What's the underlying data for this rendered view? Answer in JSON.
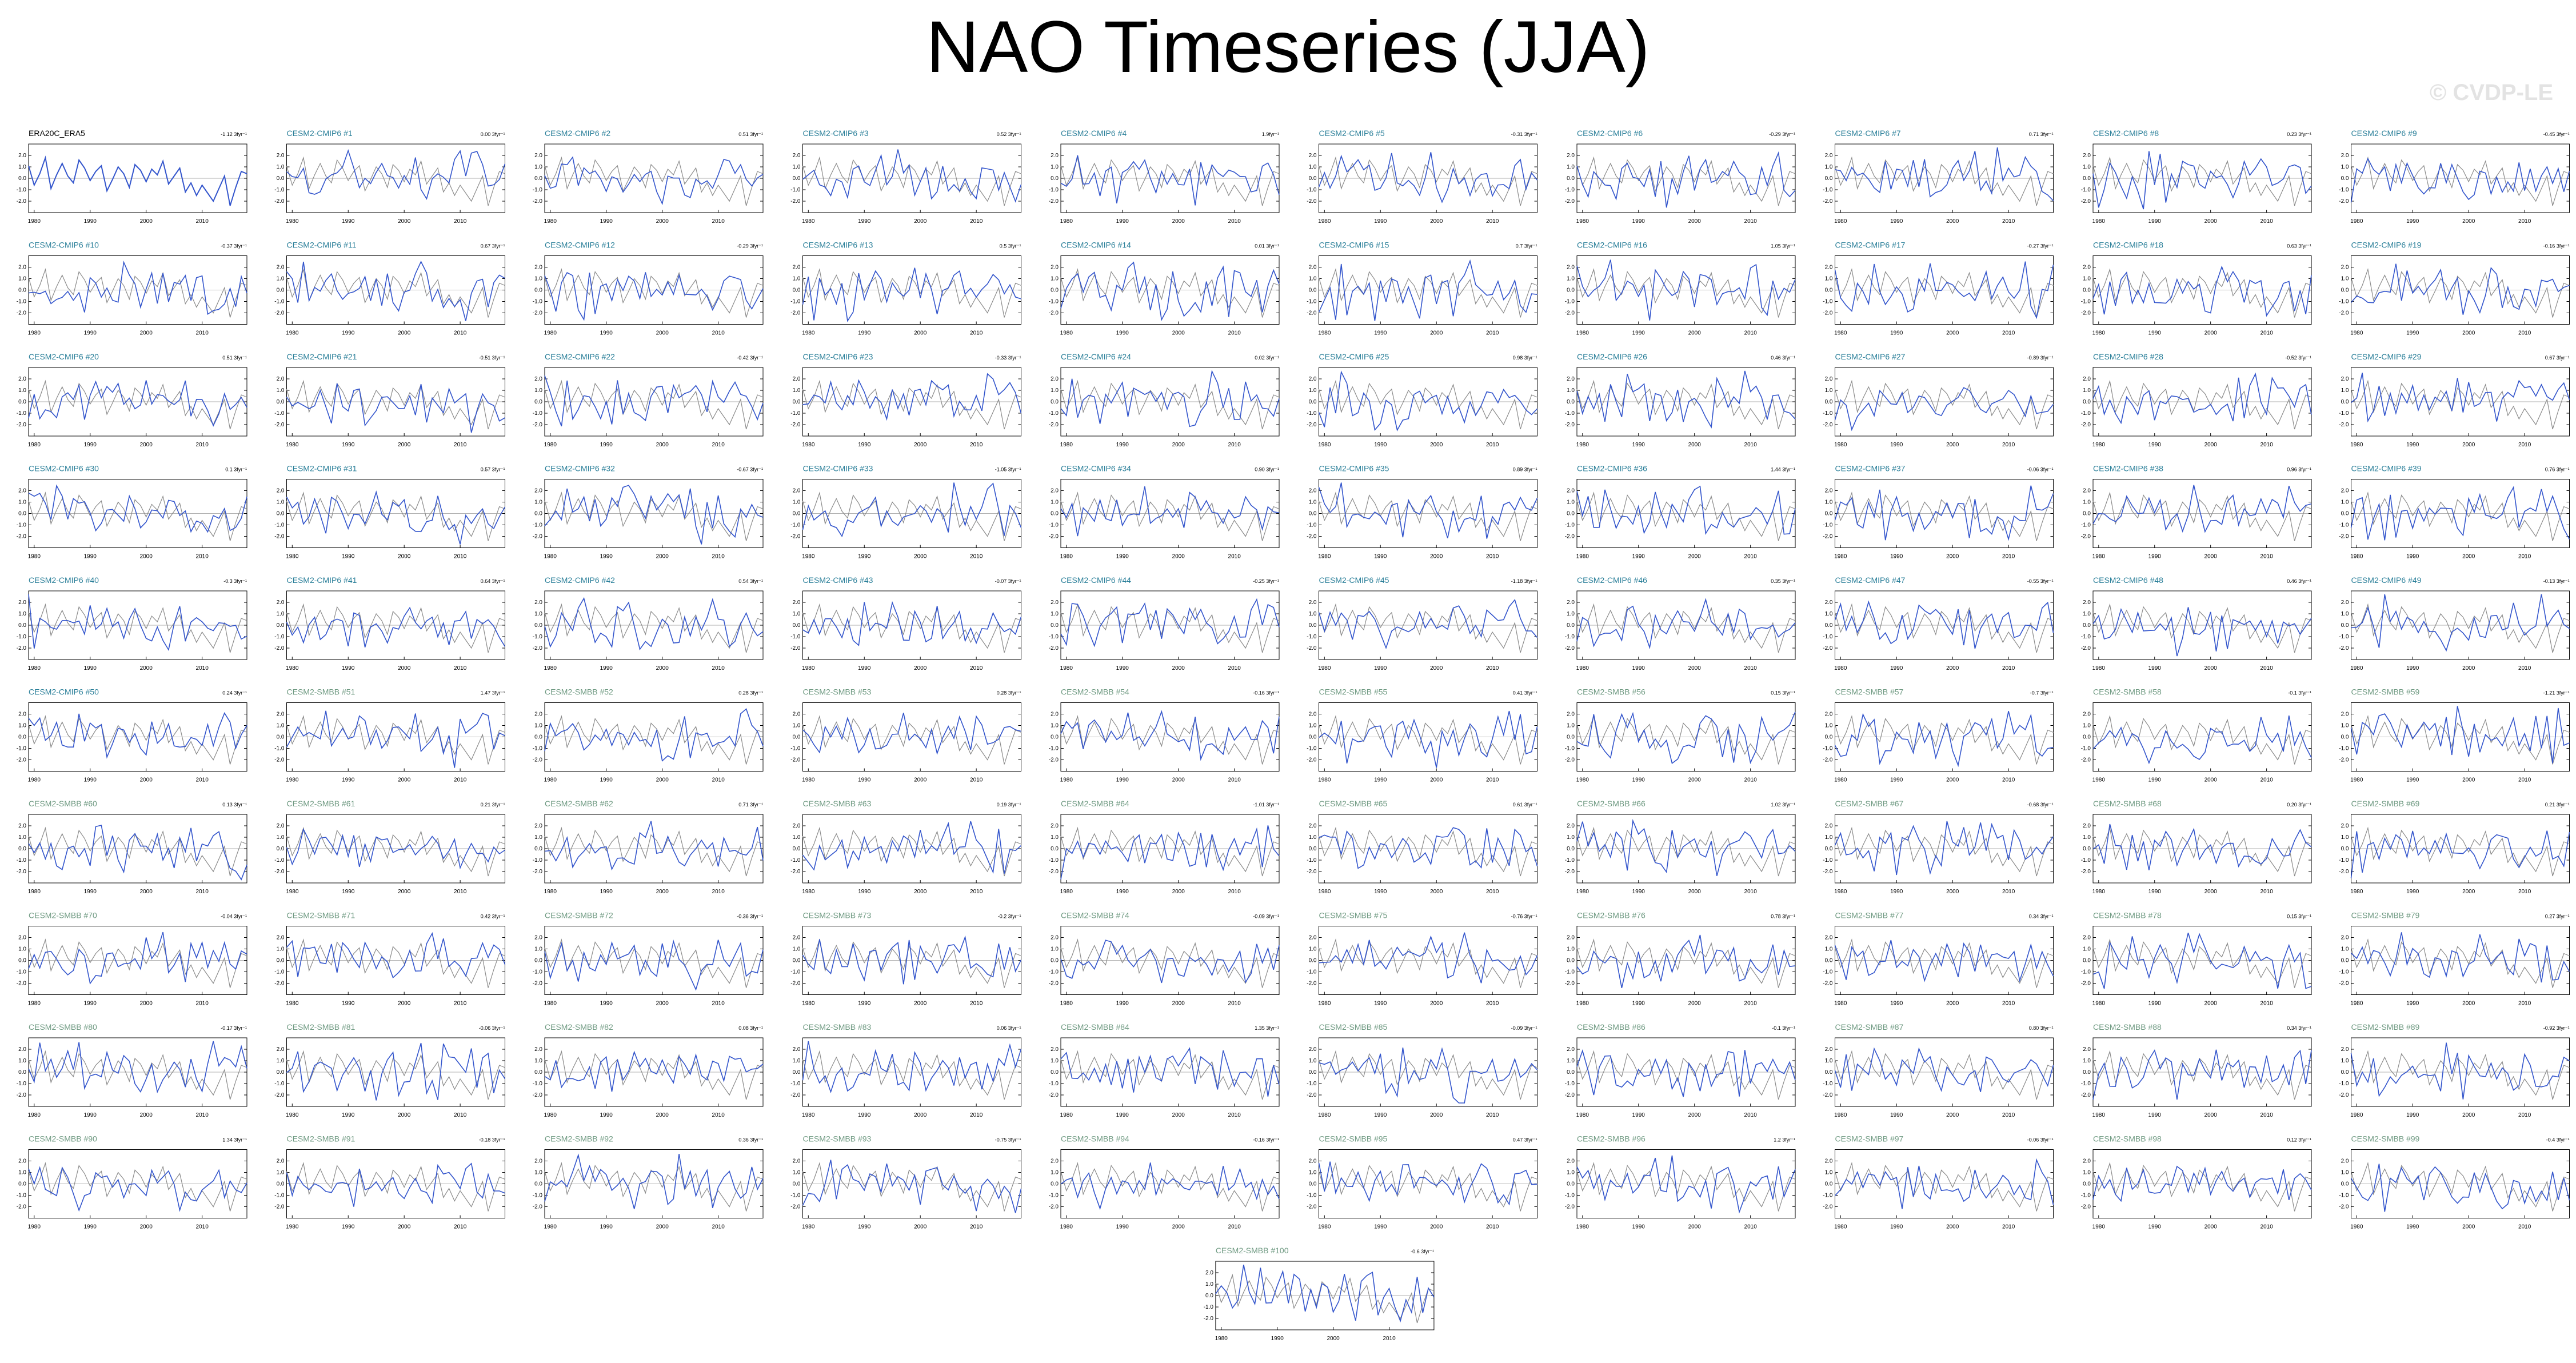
{
  "header": {
    "title": "NAO Timeseries (JJA)",
    "watermark": "© CVDP-LE"
  },
  "style": {
    "sim_color": "#3355cc",
    "obs_color": "#8a8a8a",
    "cmip6_title_color": "#2a7f99",
    "smbb_title_color": "#6f9a82",
    "obs_title_color": "#000000",
    "axis_color": "#000000"
  },
  "chart_data": {
    "type": "line",
    "panel_grid": "10 rows of 10 panels plus 1 centered panel in an 11th row",
    "x_ticks": [
      1980,
      1990,
      2000,
      2010
    ],
    "xlim": [
      1979,
      2018
    ],
    "y_ticks": [
      -2.0,
      -1.0,
      0.0,
      1.0,
      2.0
    ],
    "ylim": [
      -3.0,
      3.0
    ],
    "panels": [
      {
        "title": "ERA20C_ERA5",
        "stat": "-1.12 3fyr⁻¹",
        "kind": "obs"
      },
      {
        "title": "CESM2-CMIP6 #1",
        "stat": "0.00 3fyr⁻¹",
        "kind": "cmip6"
      },
      {
        "title": "CESM2-CMIP6 #2",
        "stat": "0.51 3fyr⁻¹",
        "kind": "cmip6"
      },
      {
        "title": "CESM2-CMIP6 #3",
        "stat": "0.52 3fyr⁻¹",
        "kind": "cmip6"
      },
      {
        "title": "CESM2-CMIP6 #4",
        "stat": "1.9fyr⁻¹",
        "kind": "cmip6"
      },
      {
        "title": "CESM2-CMIP6 #5",
        "stat": "-0.31 3fyr⁻¹",
        "kind": "cmip6"
      },
      {
        "title": "CESM2-CMIP6 #6",
        "stat": "-0.29 3fyr⁻¹",
        "kind": "cmip6"
      },
      {
        "title": "CESM2-CMIP6 #7",
        "stat": "0.71 3fyr⁻¹",
        "kind": "cmip6"
      },
      {
        "title": "CESM2-CMIP6 #8",
        "stat": "0.23 3fyr⁻¹",
        "kind": "cmip6"
      },
      {
        "title": "CESM2-CMIP6 #9",
        "stat": "-0.45 3fyr⁻¹",
        "kind": "cmip6"
      },
      {
        "title": "CESM2-CMIP6 #10",
        "stat": "-0.37 3fyr⁻¹",
        "kind": "cmip6"
      },
      {
        "title": "CESM2-CMIP6 #11",
        "stat": "0.67 3fyr⁻¹",
        "kind": "cmip6"
      },
      {
        "title": "CESM2-CMIP6 #12",
        "stat": "-0.29 3fyr⁻¹",
        "kind": "cmip6"
      },
      {
        "title": "CESM2-CMIP6 #13",
        "stat": "0.5 3fyr⁻¹",
        "kind": "cmip6"
      },
      {
        "title": "CESM2-CMIP6 #14",
        "stat": "0.01 3fyr⁻¹",
        "kind": "cmip6"
      },
      {
        "title": "CESM2-CMIP6 #15",
        "stat": "0.7 3fyr⁻¹",
        "kind": "cmip6"
      },
      {
        "title": "CESM2-CMIP6 #16",
        "stat": "1.05 3fyr⁻¹",
        "kind": "cmip6"
      },
      {
        "title": "CESM2-CMIP6 #17",
        "stat": "-0.27 3fyr⁻¹",
        "kind": "cmip6"
      },
      {
        "title": "CESM2-CMIP6 #18",
        "stat": "0.63 3fyr⁻¹",
        "kind": "cmip6"
      },
      {
        "title": "CESM2-CMIP6 #19",
        "stat": "-0.16 3fyr⁻¹",
        "kind": "cmip6"
      },
      {
        "title": "CESM2-CMIP6 #20",
        "stat": "0.51 3fyr⁻¹",
        "kind": "cmip6"
      },
      {
        "title": "CESM2-CMIP6 #21",
        "stat": "-0.51 3fyr⁻¹",
        "kind": "cmip6"
      },
      {
        "title": "CESM2-CMIP6 #22",
        "stat": "-0.42 3fyr⁻¹",
        "kind": "cmip6"
      },
      {
        "title": "CESM2-CMIP6 #23",
        "stat": "-0.33 3fyr⁻¹",
        "kind": "cmip6"
      },
      {
        "title": "CESM2-CMIP6 #24",
        "stat": "0.02 3fyr⁻¹",
        "kind": "cmip6"
      },
      {
        "title": "CESM2-CMIP6 #25",
        "stat": "0.98 3fyr⁻¹",
        "kind": "cmip6"
      },
      {
        "title": "CESM2-CMIP6 #26",
        "stat": "0.46 3fyr⁻¹",
        "kind": "cmip6"
      },
      {
        "title": "CESM2-CMIP6 #27",
        "stat": "-0.89 3fyr⁻¹",
        "kind": "cmip6"
      },
      {
        "title": "CESM2-CMIP6 #28",
        "stat": "-0.52 3fyr⁻¹",
        "kind": "cmip6"
      },
      {
        "title": "CESM2-CMIP6 #29",
        "stat": "0.67 3fyr⁻¹",
        "kind": "cmip6"
      },
      {
        "title": "CESM2-CMIP6 #30",
        "stat": "0.1 3fyr⁻¹",
        "kind": "cmip6"
      },
      {
        "title": "CESM2-CMIP6 #31",
        "stat": "0.57 3fyr⁻¹",
        "kind": "cmip6"
      },
      {
        "title": "CESM2-CMIP6 #32",
        "stat": "-0.67 3fyr⁻¹",
        "kind": "cmip6"
      },
      {
        "title": "CESM2-CMIP6 #33",
        "stat": "-1.05 3fyr⁻¹",
        "kind": "cmip6"
      },
      {
        "title": "CESM2-CMIP6 #34",
        "stat": "0.90 3fyr⁻¹",
        "kind": "cmip6"
      },
      {
        "title": "CESM2-CMIP6 #35",
        "stat": "0.89 3fyr⁻¹",
        "kind": "cmip6"
      },
      {
        "title": "CESM2-CMIP6 #36",
        "stat": "1.44 3fyr⁻¹",
        "kind": "cmip6"
      },
      {
        "title": "CESM2-CMIP6 #37",
        "stat": "-0.06 3fyr⁻¹",
        "kind": "cmip6"
      },
      {
        "title": "CESM2-CMIP6 #38",
        "stat": "0.96 3fyr⁻¹",
        "kind": "cmip6"
      },
      {
        "title": "CESM2-CMIP6 #39",
        "stat": "0.76 3fyr⁻¹",
        "kind": "cmip6"
      },
      {
        "title": "CESM2-CMIP6 #40",
        "stat": "-0.3 3fyr⁻¹",
        "kind": "cmip6"
      },
      {
        "title": "CESM2-CMIP6 #41",
        "stat": "0.64 3fyr⁻¹",
        "kind": "cmip6"
      },
      {
        "title": "CESM2-CMIP6 #42",
        "stat": "0.54 3fyr⁻¹",
        "kind": "cmip6"
      },
      {
        "title": "CESM2-CMIP6 #43",
        "stat": "-0.07 3fyr⁻¹",
        "kind": "cmip6"
      },
      {
        "title": "CESM2-CMIP6 #44",
        "stat": "-0.25 3fyr⁻¹",
        "kind": "cmip6"
      },
      {
        "title": "CESM2-CMIP6 #45",
        "stat": "-1.18 3fyr⁻¹",
        "kind": "cmip6"
      },
      {
        "title": "CESM2-CMIP6 #46",
        "stat": "0.35 3fyr⁻¹",
        "kind": "cmip6"
      },
      {
        "title": "CESM2-CMIP6 #47",
        "stat": "-0.55 3fyr⁻¹",
        "kind": "cmip6"
      },
      {
        "title": "CESM2-CMIP6 #48",
        "stat": "0.46 3fyr⁻¹",
        "kind": "cmip6"
      },
      {
        "title": "CESM2-CMIP6 #49",
        "stat": "-0.13 3fyr⁻¹",
        "kind": "cmip6"
      },
      {
        "title": "CESM2-CMIP6 #50",
        "stat": "0.24 3fyr⁻¹",
        "kind": "cmip6"
      },
      {
        "title": "CESM2-SMBB #51",
        "stat": "1.47 3fyr⁻¹",
        "kind": "smbb"
      },
      {
        "title": "CESM2-SMBB #52",
        "stat": "0.28 3fyr⁻¹",
        "kind": "smbb"
      },
      {
        "title": "CESM2-SMBB #53",
        "stat": "0.28 3fyr⁻¹",
        "kind": "smbb"
      },
      {
        "title": "CESM2-SMBB #54",
        "stat": "-0.16 3fyr⁻¹",
        "kind": "smbb"
      },
      {
        "title": "CESM2-SMBB #55",
        "stat": "0.41 3fyr⁻¹",
        "kind": "smbb"
      },
      {
        "title": "CESM2-SMBB #56",
        "stat": "0.15 3fyr⁻¹",
        "kind": "smbb"
      },
      {
        "title": "CESM2-SMBB #57",
        "stat": "-0.7 3fyr⁻¹",
        "kind": "smbb"
      },
      {
        "title": "CESM2-SMBB #58",
        "stat": "-0.1 3fyr⁻¹",
        "kind": "smbb"
      },
      {
        "title": "CESM2-SMBB #59",
        "stat": "-1.21 3fyr⁻¹",
        "kind": "smbb"
      },
      {
        "title": "CESM2-SMBB #60",
        "stat": "0.13 3fyr⁻¹",
        "kind": "smbb"
      },
      {
        "title": "CESM2-SMBB #61",
        "stat": "0.21 3fyr⁻¹",
        "kind": "smbb"
      },
      {
        "title": "CESM2-SMBB #62",
        "stat": "0.71 3fyr⁻¹",
        "kind": "smbb"
      },
      {
        "title": "CESM2-SMBB #63",
        "stat": "0.19 3fyr⁻¹",
        "kind": "smbb"
      },
      {
        "title": "CESM2-SMBB #64",
        "stat": "-1.01 3fyr⁻¹",
        "kind": "smbb"
      },
      {
        "title": "CESM2-SMBB #65",
        "stat": "0.61 3fyr⁻¹",
        "kind": "smbb"
      },
      {
        "title": "CESM2-SMBB #66",
        "stat": "1.02 3fyr⁻¹",
        "kind": "smbb"
      },
      {
        "title": "CESM2-SMBB #67",
        "stat": "-0.68 3fyr⁻¹",
        "kind": "smbb"
      },
      {
        "title": "CESM2-SMBB #68",
        "stat": "0.20 3fyr⁻¹",
        "kind": "smbb"
      },
      {
        "title": "CESM2-SMBB #69",
        "stat": "0.21 3fyr⁻¹",
        "kind": "smbb"
      },
      {
        "title": "CESM2-SMBB #70",
        "stat": "-0.04 3fyr⁻¹",
        "kind": "smbb"
      },
      {
        "title": "CESM2-SMBB #71",
        "stat": "0.42 3fyr⁻¹",
        "kind": "smbb"
      },
      {
        "title": "CESM2-SMBB #72",
        "stat": "-0.36 3fyr⁻¹",
        "kind": "smbb"
      },
      {
        "title": "CESM2-SMBB #73",
        "stat": "-0.2 3fyr⁻¹",
        "kind": "smbb"
      },
      {
        "title": "CESM2-SMBB #74",
        "stat": "-0.09 3fyr⁻¹",
        "kind": "smbb"
      },
      {
        "title": "CESM2-SMBB #75",
        "stat": "-0.76 3fyr⁻¹",
        "kind": "smbb"
      },
      {
        "title": "CESM2-SMBB #76",
        "stat": "0.78 3fyr⁻¹",
        "kind": "smbb"
      },
      {
        "title": "CESM2-SMBB #77",
        "stat": "0.34 3fyr⁻¹",
        "kind": "smbb"
      },
      {
        "title": "CESM2-SMBB #78",
        "stat": "0.15 3fyr⁻¹",
        "kind": "smbb"
      },
      {
        "title": "CESM2-SMBB #79",
        "stat": "0.27 3fyr⁻¹",
        "kind": "smbb"
      },
      {
        "title": "CESM2-SMBB #80",
        "stat": "-0.17 3fyr⁻¹",
        "kind": "smbb"
      },
      {
        "title": "CESM2-SMBB #81",
        "stat": "-0.06 3fyr⁻¹",
        "kind": "smbb"
      },
      {
        "title": "CESM2-SMBB #82",
        "stat": "0.08 3fyr⁻¹",
        "kind": "smbb"
      },
      {
        "title": "CESM2-SMBB #83",
        "stat": "0.06 3fyr⁻¹",
        "kind": "smbb"
      },
      {
        "title": "CESM2-SMBB #84",
        "stat": "1.35 3fyr⁻¹",
        "kind": "smbb"
      },
      {
        "title": "CESM2-SMBB #85",
        "stat": "-0.09 3fyr⁻¹",
        "kind": "smbb"
      },
      {
        "title": "CESM2-SMBB #86",
        "stat": "-0.1 3fyr⁻¹",
        "kind": "smbb"
      },
      {
        "title": "CESM2-SMBB #87",
        "stat": "0.80 3fyr⁻¹",
        "kind": "smbb"
      },
      {
        "title": "CESM2-SMBB #88",
        "stat": "0.34 3fyr⁻¹",
        "kind": "smbb"
      },
      {
        "title": "CESM2-SMBB #89",
        "stat": "-0.92 3fyr⁻¹",
        "kind": "smbb"
      },
      {
        "title": "CESM2-SMBB #90",
        "stat": "1.34 3fyr⁻¹",
        "kind": "smbb"
      },
      {
        "title": "CESM2-SMBB #91",
        "stat": "-0.18 3fyr⁻¹",
        "kind": "smbb"
      },
      {
        "title": "CESM2-SMBB #92",
        "stat": "0.36 3fyr⁻¹",
        "kind": "smbb"
      },
      {
        "title": "CESM2-SMBB #93",
        "stat": "-0.75 3fyr⁻¹",
        "kind": "smbb"
      },
      {
        "title": "CESM2-SMBB #94",
        "stat": "-0.16 3fyr⁻¹",
        "kind": "smbb"
      },
      {
        "title": "CESM2-SMBB #95",
        "stat": "0.47 3fyr⁻¹",
        "kind": "smbb"
      },
      {
        "title": "CESM2-SMBB #96",
        "stat": "1.2 3fyr⁻¹",
        "kind": "smbb"
      },
      {
        "title": "CESM2-SMBB #97",
        "stat": "-0.06 3fyr⁻¹",
        "kind": "smbb"
      },
      {
        "title": "CESM2-SMBB #98",
        "stat": "0.12 3fyr⁻¹",
        "kind": "smbb"
      },
      {
        "title": "CESM2-SMBB #99",
        "stat": "-0.4 3fyr⁻¹",
        "kind": "smbb"
      },
      {
        "title": "CESM2-SMBB #100",
        "stat": "-0.6 3fyr⁻¹",
        "kind": "smbb"
      }
    ],
    "obs_series": {
      "name": "ERA20C_ERA5",
      "x": [
        1979,
        1980,
        1981,
        1982,
        1983,
        1984,
        1985,
        1986,
        1987,
        1988,
        1989,
        1990,
        1991,
        1992,
        1993,
        1994,
        1995,
        1996,
        1997,
        1998,
        1999,
        2000,
        2001,
        2002,
        2003,
        2004,
        2005,
        2006,
        2007,
        2008,
        2009,
        2010,
        2011,
        2012,
        2013,
        2014,
        2015,
        2016,
        2017,
        2018
      ],
      "values": [
        1.1,
        -0.6,
        0.4,
        1.8,
        -0.9,
        0.3,
        1.3,
        0.2,
        -0.4,
        1.6,
        0.9,
        -0.2,
        0.6,
        1.1,
        -1.1,
        -0.1,
        1.0,
        0.4,
        -0.8,
        1.2,
        0.7,
        -0.3,
        0.8,
        0.3,
        1.5,
        -0.5,
        0.2,
        0.9,
        -1.2,
        -0.4,
        -1.5,
        -0.6,
        -1.3,
        -2.0,
        -0.9,
        0.2,
        -2.4,
        -0.8,
        0.6,
        0.4
      ]
    }
  }
}
